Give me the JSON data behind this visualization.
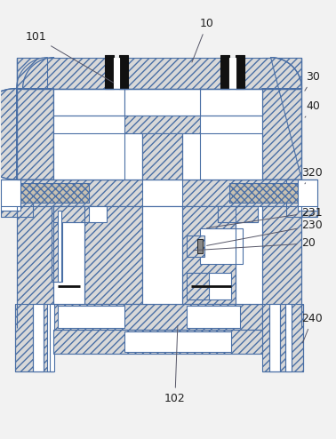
{
  "bg": "#f2f2f2",
  "hc": "#d8d8d8",
  "ec": "#4a6fa5",
  "lw": 0.8,
  "fs": 9,
  "fig_w": 3.78,
  "fig_h": 4.94,
  "dpi": 100
}
